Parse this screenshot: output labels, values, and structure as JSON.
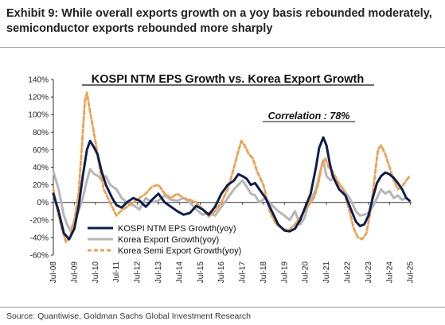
{
  "header": {
    "exhibit_title": "Exhibit 9: While overall exports growth on a yoy basis rebounded moderately, semiconductor exports rebounded more sharply"
  },
  "footer": {
    "source": "Source: Quantiwise, Goldman Sachs Global Investment Research"
  },
  "chart_data": {
    "type": "line",
    "title": "KOSPI NTM EPS Growth vs. Korea Export Growth",
    "annotation": "Correlation : 78%",
    "xlabel": "",
    "ylabel": "",
    "xlim": [
      2008.5,
      2025.55
    ],
    "ylim": [
      -60,
      140
    ],
    "y_ticks": [
      140,
      120,
      100,
      80,
      60,
      40,
      20,
      0,
      -20,
      -40,
      -60
    ],
    "y_tick_labels": [
      "140%",
      "120%",
      "100%",
      "80%",
      "60%",
      "40%",
      "20%",
      "0%",
      "-20%",
      "-40%",
      "-60%"
    ],
    "x_ticks": [
      2008.5,
      2009.5,
      2010.5,
      2011.5,
      2012.5,
      2013.5,
      2014.5,
      2015.5,
      2016.5,
      2017.5,
      2018.5,
      2019.5,
      2020.5,
      2021.5,
      2022.5,
      2023.5,
      2024.5,
      2025.5
    ],
    "x_tick_labels": [
      "Jul-08",
      "Jul-09",
      "Jul-10",
      "Jul-11",
      "Jul-12",
      "Jul-13",
      "Jul-14",
      "Jul-15",
      "Jul-16",
      "Jul-17",
      "Jul-18",
      "Jul-19",
      "Jul-20",
      "Jul-21",
      "Jul-22",
      "Jul-23",
      "Jul-24",
      "Jul-25"
    ],
    "grid": false,
    "legend_position": "bottom-left",
    "series": [
      {
        "name": "KOSPI NTM EPS Growth(yoy)",
        "color": "#0d1f4f",
        "style": "solid",
        "points": [
          [
            2008.5,
            10
          ],
          [
            2008.75,
            -10
          ],
          [
            2009.0,
            -35
          ],
          [
            2009.25,
            -42
          ],
          [
            2009.5,
            -30
          ],
          [
            2009.7,
            -5
          ],
          [
            2009.9,
            30
          ],
          [
            2010.1,
            60
          ],
          [
            2010.25,
            70
          ],
          [
            2010.45,
            62
          ],
          [
            2010.6,
            55
          ],
          [
            2010.8,
            35
          ],
          [
            2011.0,
            20
          ],
          [
            2011.3,
            5
          ],
          [
            2011.5,
            -3
          ],
          [
            2011.75,
            -6
          ],
          [
            2012.0,
            0
          ],
          [
            2012.3,
            5
          ],
          [
            2012.6,
            2
          ],
          [
            2012.9,
            -5
          ],
          [
            2013.2,
            3
          ],
          [
            2013.5,
            10
          ],
          [
            2013.8,
            0
          ],
          [
            2014.1,
            -5
          ],
          [
            2014.4,
            -10
          ],
          [
            2014.7,
            -14
          ],
          [
            2015.0,
            -12
          ],
          [
            2015.3,
            -4
          ],
          [
            2015.6,
            -8
          ],
          [
            2015.9,
            -14
          ],
          [
            2016.2,
            -5
          ],
          [
            2016.5,
            10
          ],
          [
            2016.8,
            20
          ],
          [
            2017.1,
            25
          ],
          [
            2017.3,
            32
          ],
          [
            2017.5,
            30
          ],
          [
            2017.7,
            27
          ],
          [
            2017.9,
            20
          ],
          [
            2018.1,
            22
          ],
          [
            2018.3,
            15
          ],
          [
            2018.6,
            5
          ],
          [
            2018.9,
            -10
          ],
          [
            2019.2,
            -25
          ],
          [
            2019.5,
            -32
          ],
          [
            2019.75,
            -33
          ],
          [
            2020.0,
            -30
          ],
          [
            2020.25,
            -20
          ],
          [
            2020.5,
            -5
          ],
          [
            2020.75,
            10
          ],
          [
            2021.0,
            40
          ],
          [
            2021.15,
            62
          ],
          [
            2021.35,
            74
          ],
          [
            2021.5,
            65
          ],
          [
            2021.65,
            45
          ],
          [
            2021.8,
            30
          ],
          [
            2022.1,
            15
          ],
          [
            2022.4,
            8
          ],
          [
            2022.7,
            -10
          ],
          [
            2022.9,
            -22
          ],
          [
            2023.1,
            -27
          ],
          [
            2023.3,
            -25
          ],
          [
            2023.5,
            -15
          ],
          [
            2023.7,
            5
          ],
          [
            2023.9,
            22
          ],
          [
            2024.1,
            30
          ],
          [
            2024.3,
            34
          ],
          [
            2024.5,
            32
          ],
          [
            2024.7,
            28
          ],
          [
            2024.9,
            22
          ],
          [
            2025.1,
            15
          ],
          [
            2025.3,
            5
          ],
          [
            2025.45,
            2
          ]
        ]
      },
      {
        "name": "Korea Export Growth(yoy)",
        "color": "#b7b7b7",
        "style": "solid",
        "points": [
          [
            2008.5,
            35
          ],
          [
            2008.75,
            15
          ],
          [
            2009.0,
            -15
          ],
          [
            2009.15,
            -25
          ],
          [
            2009.3,
            -32
          ],
          [
            2009.5,
            -22
          ],
          [
            2009.7,
            -10
          ],
          [
            2009.9,
            5
          ],
          [
            2010.1,
            25
          ],
          [
            2010.25,
            38
          ],
          [
            2010.45,
            32
          ],
          [
            2010.65,
            30
          ],
          [
            2010.8,
            25
          ],
          [
            2011.0,
            30
          ],
          [
            2011.2,
            20
          ],
          [
            2011.5,
            15
          ],
          [
            2011.75,
            5
          ],
          [
            2012.0,
            0
          ],
          [
            2012.3,
            -3
          ],
          [
            2012.6,
            -8
          ],
          [
            2012.9,
            5
          ],
          [
            2013.2,
            0
          ],
          [
            2013.5,
            2
          ],
          [
            2013.8,
            8
          ],
          [
            2014.1,
            3
          ],
          [
            2014.4,
            2
          ],
          [
            2014.7,
            5
          ],
          [
            2015.0,
            0
          ],
          [
            2015.3,
            -8
          ],
          [
            2015.6,
            -14
          ],
          [
            2015.9,
            -12
          ],
          [
            2016.2,
            -15
          ],
          [
            2016.5,
            -5
          ],
          [
            2016.8,
            5
          ],
          [
            2017.1,
            15
          ],
          [
            2017.3,
            20
          ],
          [
            2017.5,
            25
          ],
          [
            2017.7,
            18
          ],
          [
            2017.9,
            10
          ],
          [
            2018.1,
            8
          ],
          [
            2018.3,
            0
          ],
          [
            2018.6,
            5
          ],
          [
            2018.9,
            -3
          ],
          [
            2019.2,
            -10
          ],
          [
            2019.5,
            -15
          ],
          [
            2019.75,
            -20
          ],
          [
            2020.0,
            -10
          ],
          [
            2020.25,
            -25
          ],
          [
            2020.45,
            -18
          ],
          [
            2020.6,
            -5
          ],
          [
            2020.8,
            5
          ],
          [
            2021.0,
            15
          ],
          [
            2021.2,
            35
          ],
          [
            2021.35,
            48
          ],
          [
            2021.5,
            30
          ],
          [
            2021.7,
            25
          ],
          [
            2021.9,
            30
          ],
          [
            2022.1,
            20
          ],
          [
            2022.3,
            15
          ],
          [
            2022.6,
            5
          ],
          [
            2022.9,
            -10
          ],
          [
            2023.1,
            -15
          ],
          [
            2023.3,
            -14
          ],
          [
            2023.5,
            -12
          ],
          [
            2023.7,
            -5
          ],
          [
            2023.9,
            5
          ],
          [
            2024.1,
            15
          ],
          [
            2024.3,
            10
          ],
          [
            2024.5,
            13
          ],
          [
            2024.7,
            5
          ],
          [
            2024.9,
            8
          ],
          [
            2025.1,
            3
          ],
          [
            2025.3,
            5
          ],
          [
            2025.45,
            2
          ]
        ]
      },
      {
        "name": "Korea Semi Export Growth(yoy)",
        "color": "#f0a050",
        "style": "dashed",
        "points": [
          [
            2008.5,
            15
          ],
          [
            2008.7,
            -10
          ],
          [
            2008.9,
            -30
          ],
          [
            2009.1,
            -45
          ],
          [
            2009.3,
            -40
          ],
          [
            2009.5,
            -20
          ],
          [
            2009.7,
            10
          ],
          [
            2009.85,
            60
          ],
          [
            2010.0,
            115
          ],
          [
            2010.1,
            125
          ],
          [
            2010.2,
            110
          ],
          [
            2010.35,
            90
          ],
          [
            2010.5,
            70
          ],
          [
            2010.7,
            40
          ],
          [
            2010.9,
            15
          ],
          [
            2011.1,
            5
          ],
          [
            2011.3,
            -5
          ],
          [
            2011.5,
            -15
          ],
          [
            2011.7,
            -10
          ],
          [
            2012.0,
            -5
          ],
          [
            2012.3,
            0
          ],
          [
            2012.6,
            5
          ],
          [
            2012.9,
            10
          ],
          [
            2013.2,
            18
          ],
          [
            2013.5,
            20
          ],
          [
            2013.8,
            10
          ],
          [
            2014.1,
            5
          ],
          [
            2014.4,
            10
          ],
          [
            2014.7,
            5
          ],
          [
            2015.0,
            3
          ],
          [
            2015.3,
            0
          ],
          [
            2015.6,
            -8
          ],
          [
            2015.9,
            -16
          ],
          [
            2016.2,
            -10
          ],
          [
            2016.5,
            0
          ],
          [
            2016.8,
            15
          ],
          [
            2017.1,
            40
          ],
          [
            2017.3,
            58
          ],
          [
            2017.45,
            70
          ],
          [
            2017.6,
            65
          ],
          [
            2017.8,
            55
          ],
          [
            2018.0,
            50
          ],
          [
            2018.2,
            35
          ],
          [
            2018.5,
            20
          ],
          [
            2018.8,
            -10
          ],
          [
            2019.1,
            -25
          ],
          [
            2019.4,
            -30
          ],
          [
            2019.7,
            -32
          ],
          [
            2020.0,
            -25
          ],
          [
            2020.3,
            -15
          ],
          [
            2020.6,
            -5
          ],
          [
            2020.9,
            5
          ],
          [
            2021.1,
            20
          ],
          [
            2021.3,
            45
          ],
          [
            2021.45,
            50
          ],
          [
            2021.6,
            40
          ],
          [
            2021.8,
            35
          ],
          [
            2022.0,
            25
          ],
          [
            2022.3,
            15
          ],
          [
            2022.6,
            -10
          ],
          [
            2022.8,
            -30
          ],
          [
            2023.0,
            -40
          ],
          [
            2023.2,
            -42
          ],
          [
            2023.4,
            -35
          ],
          [
            2023.6,
            -10
          ],
          [
            2023.8,
            30
          ],
          [
            2023.95,
            60
          ],
          [
            2024.1,
            65
          ],
          [
            2024.3,
            55
          ],
          [
            2024.5,
            40
          ],
          [
            2024.7,
            25
          ],
          [
            2024.9,
            15
          ],
          [
            2025.1,
            18
          ],
          [
            2025.3,
            25
          ],
          [
            2025.45,
            30
          ]
        ]
      }
    ]
  }
}
